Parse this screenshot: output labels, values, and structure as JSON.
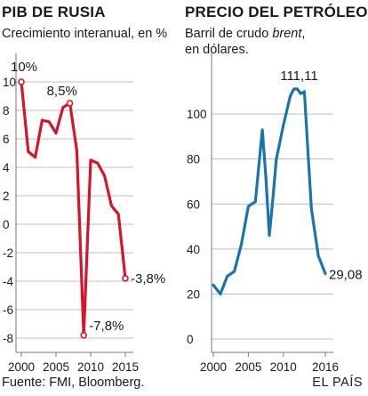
{
  "footer": {
    "source": "Fuente: FMI, Bloomberg.",
    "credit": "EL PAÍS"
  },
  "colors": {
    "russia": "#d7142b",
    "oil": "#1b75a9",
    "grid": "#bdbdbd",
    "axis": "#777777",
    "marker_fill": "#ffffff",
    "text": "#1a1a1a"
  },
  "chart_data": [
    {
      "type": "line",
      "title": "PIB DE RUSIA",
      "subtitle": "Crecimiento interanual, en %",
      "xlabel": "",
      "ylabel": "",
      "xlim": [
        2000,
        2015
      ],
      "ylim": [
        -8,
        10
      ],
      "grid": true,
      "x_ticks": [
        2000,
        2005,
        2010,
        2015
      ],
      "y_ticks": [
        10,
        8,
        6,
        4,
        2,
        0,
        -2,
        -4,
        -6,
        -8
      ],
      "y_tick_labels": [
        "10",
        "8",
        "6",
        "4",
        "2",
        "0",
        "-2",
        "-4",
        "-6",
        "-8"
      ],
      "series": [
        {
          "x": [
            2000,
            2001,
            2002,
            2003,
            2004,
            2005,
            2006,
            2007,
            2008,
            2009,
            2010,
            2011,
            2012,
            2013,
            2014,
            2015
          ],
          "y": [
            10.0,
            5.1,
            4.7,
            7.3,
            7.2,
            6.4,
            8.2,
            8.5,
            5.2,
            -7.8,
            4.5,
            4.3,
            3.4,
            1.3,
            0.7,
            -3.8
          ]
        }
      ],
      "annotations": [
        {
          "text": "10%",
          "x": 2000,
          "y": 10.0
        },
        {
          "text": "8,5%",
          "x": 2007,
          "y": 8.5
        },
        {
          "text": "-7,8%",
          "x": 2009,
          "y": -7.8
        },
        {
          "text": "-3,8%",
          "x": 2015,
          "y": -3.8
        }
      ]
    },
    {
      "type": "line",
      "title": "PRECIO DEL PETRÓLEO",
      "subtitle_line1": "Barril de crudo ",
      "subtitle_italic": "brent",
      "subtitle_line1_end": ",",
      "subtitle_line2": "en dólares.",
      "xlabel": "",
      "ylabel": "",
      "xlim": [
        2000,
        2016
      ],
      "ylim": [
        0,
        111.11
      ],
      "grid": true,
      "x_ticks": [
        2000,
        2005,
        2010,
        2016
      ],
      "y_ticks": [
        100,
        80,
        60,
        40,
        20,
        0
      ],
      "y_tick_labels": [
        "100",
        "80",
        "60",
        "40",
        "20",
        "0"
      ],
      "series": [
        {
          "x": [
            2000,
            2001,
            2002,
            2003,
            2004,
            2005,
            2006,
            2007,
            2007.5,
            2008,
            2008.5,
            2009,
            2010,
            2011,
            2011.5,
            2012,
            2012.5,
            2013,
            2014,
            2015,
            2016
          ],
          "y": [
            24,
            20,
            28,
            30,
            42,
            59,
            61,
            93,
            72,
            46,
            62,
            80,
            95,
            108,
            111.11,
            111.11,
            109,
            110,
            58,
            37,
            29.08
          ]
        }
      ],
      "annotations": [
        {
          "text": "111,11",
          "x": 2012,
          "y": 111.11
        },
        {
          "text": "29,08",
          "x": 2016,
          "y": 29.08
        }
      ]
    }
  ]
}
